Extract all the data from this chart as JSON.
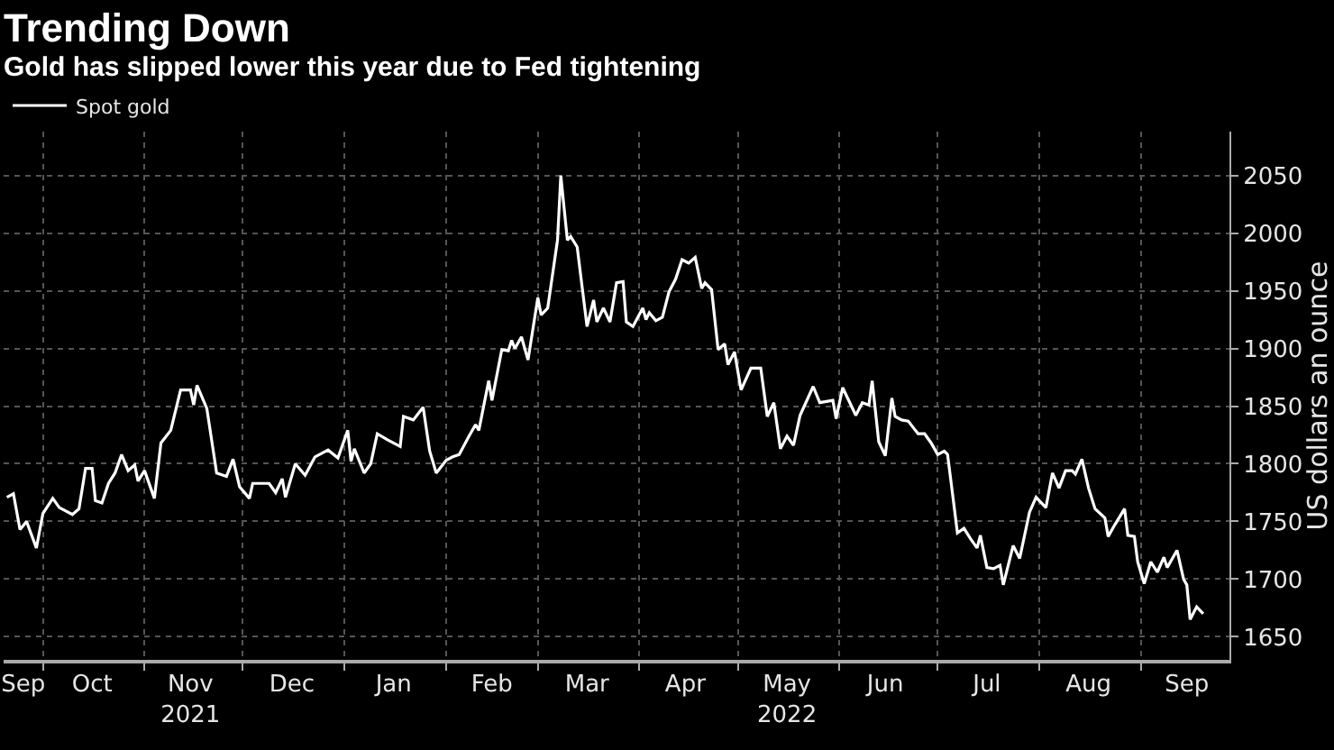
{
  "chart_data": {
    "type": "line",
    "title": "Trending Down",
    "subtitle": "Gold has slipped lower this year due to Fed tightening",
    "ylabel": "US dollars an ounce",
    "x": [
      "2021-09-20",
      "2021-09-22",
      "2021-09-24",
      "2021-09-26",
      "2021-09-29",
      "2021-10-01",
      "2021-10-04",
      "2021-10-06",
      "2021-10-10",
      "2021-10-12",
      "2021-10-14",
      "2021-10-16",
      "2021-10-17",
      "2021-10-19",
      "2021-10-21",
      "2021-10-23",
      "2021-10-25",
      "2021-10-27",
      "2021-10-29",
      "2021-10-30",
      "2021-11-01",
      "2021-11-04",
      "2021-11-06",
      "2021-11-09",
      "2021-11-12",
      "2021-11-15",
      "2021-11-16",
      "2021-11-17",
      "2021-11-20",
      "2021-11-23",
      "2021-11-26",
      "2021-11-28",
      "2021-11-30",
      "2021-12-03",
      "2021-12-04",
      "2021-12-09",
      "2021-12-11",
      "2021-12-13",
      "2021-12-14",
      "2021-12-17",
      "2021-12-20",
      "2021-12-23",
      "2021-12-27",
      "2021-12-30",
      "2022-01-02",
      "2022-01-03",
      "2022-01-04",
      "2022-01-07",
      "2022-01-09",
      "2022-01-11",
      "2022-01-14",
      "2022-01-18",
      "2022-01-19",
      "2022-01-22",
      "2022-01-25",
      "2022-01-27",
      "2022-01-29",
      "2022-02-01",
      "2022-02-03",
      "2022-02-05",
      "2022-02-08",
      "2022-02-10",
      "2022-02-11",
      "2022-02-14",
      "2022-02-15",
      "2022-02-18",
      "2022-02-20",
      "2022-02-21",
      "2022-02-22",
      "2022-02-24",
      "2022-02-26",
      "2022-03-01",
      "2022-03-02",
      "2022-03-04",
      "2022-03-07",
      "2022-03-08",
      "2022-03-10",
      "2022-03-11",
      "2022-03-13",
      "2022-03-16",
      "2022-03-18",
      "2022-03-19",
      "2022-03-21",
      "2022-03-23",
      "2022-03-25",
      "2022-03-27",
      "2022-03-28",
      "2022-03-30",
      "2022-04-02",
      "2022-04-03",
      "2022-04-04",
      "2022-04-06",
      "2022-04-08",
      "2022-04-10",
      "2022-04-12",
      "2022-04-14",
      "2022-04-16",
      "2022-04-18",
      "2022-04-20",
      "2022-04-21",
      "2022-04-23",
      "2022-04-25",
      "2022-04-27",
      "2022-04-28",
      "2022-04-30",
      "2022-05-02",
      "2022-05-05",
      "2022-05-08",
      "2022-05-10",
      "2022-05-12",
      "2022-05-14",
      "2022-05-16",
      "2022-05-18",
      "2022-05-20",
      "2022-05-24",
      "2022-05-26",
      "2022-05-30",
      "2022-05-31",
      "2022-06-02",
      "2022-06-06",
      "2022-06-08",
      "2022-06-10",
      "2022-06-11",
      "2022-06-13",
      "2022-06-15",
      "2022-06-17",
      "2022-06-18",
      "2022-06-20",
      "2022-06-22",
      "2022-06-25",
      "2022-06-27",
      "2022-06-29",
      "2022-07-01",
      "2022-07-03",
      "2022-07-04",
      "2022-07-06",
      "2022-07-07",
      "2022-07-09",
      "2022-07-11",
      "2022-07-13",
      "2022-07-14",
      "2022-07-16",
      "2022-07-18",
      "2022-07-20",
      "2022-07-21",
      "2022-07-24",
      "2022-07-26",
      "2022-07-29",
      "2022-07-31",
      "2022-08-03",
      "2022-08-05",
      "2022-08-07",
      "2022-08-09",
      "2022-08-11",
      "2022-08-12",
      "2022-08-14",
      "2022-08-16",
      "2022-08-18",
      "2022-08-21",
      "2022-08-22",
      "2022-08-24",
      "2022-08-27",
      "2022-08-28",
      "2022-08-30",
      "2022-08-31",
      "2022-09-02",
      "2022-09-04",
      "2022-09-06",
      "2022-09-08",
      "2022-09-09",
      "2022-09-12",
      "2022-09-14",
      "2022-09-15",
      "2022-09-16",
      "2022-09-18",
      "2022-09-20"
    ],
    "series": [
      {
        "name": "Spot gold",
        "color": "#ffffff",
        "values": [
          1771,
          1774,
          1743,
          1750,
          1727,
          1757,
          1770,
          1762,
          1756,
          1761,
          1796,
          1796,
          1768,
          1766,
          1783,
          1792,
          1808,
          1794,
          1799,
          1785,
          1794,
          1770,
          1818,
          1829,
          1864,
          1864,
          1851,
          1868,
          1848,
          1792,
          1789,
          1804,
          1780,
          1770,
          1783,
          1783,
          1775,
          1787,
          1771,
          1800,
          1790,
          1806,
          1812,
          1805,
          1829,
          1802,
          1813,
          1792,
          1800,
          1826,
          1821,
          1815,
          1841,
          1838,
          1849,
          1811,
          1792,
          1803,
          1806,
          1808,
          1824,
          1834,
          1829,
          1872,
          1855,
          1899,
          1898,
          1907,
          1900,
          1910,
          1890,
          1944,
          1929,
          1935,
          1994,
          2050,
          1994,
          1997,
          1988,
          1919,
          1942,
          1923,
          1935,
          1923,
          1957,
          1958,
          1923,
          1919,
          1935,
          1925,
          1931,
          1924,
          1927,
          1949,
          1960,
          1977,
          1974,
          1979,
          1952,
          1957,
          1951,
          1899,
          1904,
          1886,
          1897,
          1864,
          1883,
          1883,
          1841,
          1853,
          1813,
          1824,
          1816,
          1842,
          1867,
          1853,
          1855,
          1839,
          1866,
          1842,
          1853,
          1851,
          1872,
          1819,
          1807,
          1857,
          1841,
          1838,
          1837,
          1826,
          1826,
          1818,
          1808,
          1811,
          1808,
          1763,
          1740,
          1744,
          1735,
          1727,
          1738,
          1710,
          1709,
          1712,
          1695,
          1729,
          1718,
          1758,
          1771,
          1762,
          1792,
          1779,
          1794,
          1794,
          1791,
          1804,
          1779,
          1761,
          1753,
          1737,
          1747,
          1761,
          1738,
          1737,
          1715,
          1696,
          1715,
          1706,
          1719,
          1710,
          1725,
          1700,
          1695,
          1665,
          1676,
          1670
        ]
      }
    ],
    "xlim": [
      "2021-09-19",
      "2022-09-28"
    ],
    "xticks": [
      {
        "value": "2021-09-25",
        "label": "Sep"
      },
      {
        "value": "2021-10-01",
        "label": null
      },
      {
        "value": "2021-10-16",
        "label": "Oct"
      },
      {
        "value": "2021-11-01",
        "label": null
      },
      {
        "value": "2021-11-15",
        "label": "Nov\n2021"
      },
      {
        "value": "2021-12-01",
        "label": null
      },
      {
        "value": "2021-12-16",
        "label": "Dec"
      },
      {
        "value": "2022-01-01",
        "label": null
      },
      {
        "value": "2022-01-16",
        "label": "Jan"
      },
      {
        "value": "2022-02-01",
        "label": null
      },
      {
        "value": "2022-02-15",
        "label": "Feb"
      },
      {
        "value": "2022-03-01",
        "label": null
      },
      {
        "value": "2022-03-16",
        "label": "Mar"
      },
      {
        "value": "2022-04-01",
        "label": null
      },
      {
        "value": "2022-04-15",
        "label": "Apr"
      },
      {
        "value": "2022-05-01",
        "label": null
      },
      {
        "value": "2022-05-16",
        "label": "May\n2022"
      },
      {
        "value": "2022-06-01",
        "label": null
      },
      {
        "value": "2022-06-15",
        "label": "Jun"
      },
      {
        "value": "2022-07-01",
        "label": null
      },
      {
        "value": "2022-07-16",
        "label": "Jul"
      },
      {
        "value": "2022-08-01",
        "label": null
      },
      {
        "value": "2022-08-16",
        "label": "Aug"
      },
      {
        "value": "2022-09-01",
        "label": null
      },
      {
        "value": "2022-09-15",
        "label": "Sep"
      }
    ],
    "ylim": [
      1630,
      2088
    ],
    "yticks": [
      1650,
      1700,
      1750,
      1800,
      1850,
      1900,
      1950,
      2000,
      2050
    ],
    "grid": true,
    "legend": "top left",
    "line_style": "solid",
    "marker": "none"
  }
}
